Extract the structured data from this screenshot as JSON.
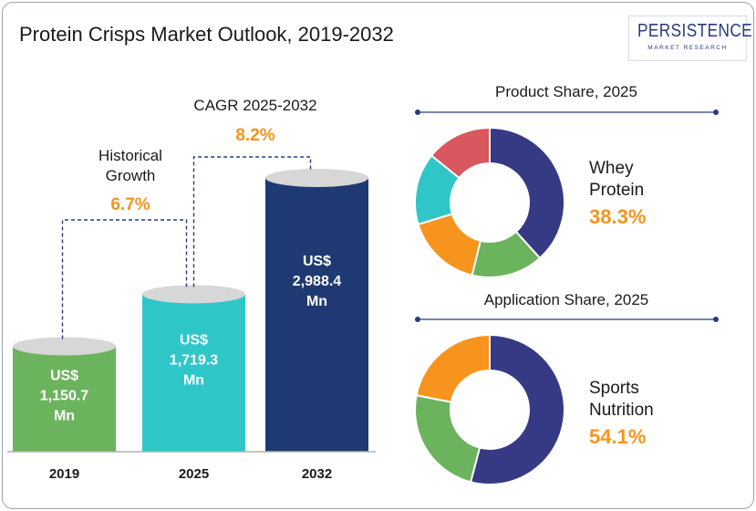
{
  "title": "Protein Crisps Market Outlook, 2019-2032",
  "logo": {
    "main": "PERSISTENCE",
    "sub": "MARKET RESEARCH"
  },
  "colors": {
    "bar_2019": "#6cb35d",
    "bar_2025": "#2fc6c8",
    "bar_2032": "#1f3a73",
    "accent": "#f7941d",
    "navy": "#363a85",
    "green": "#6cb35d",
    "orange": "#f7941d",
    "teal": "#2fc6c8",
    "red": "#d9575f"
  },
  "chart_data": [
    {
      "type": "bar",
      "categories": [
        "2019",
        "2025",
        "2032"
      ],
      "values": [
        1150.7,
        1719.3,
        2988.4
      ],
      "value_labels": [
        [
          "US$",
          "1,150.7",
          "Mn"
        ],
        [
          "US$",
          "1,719.3",
          "Mn"
        ],
        [
          "US$",
          "2,988.4",
          "Mn"
        ]
      ],
      "annotations": {
        "historical": {
          "label_lines": [
            "Historical",
            "Growth"
          ],
          "value": "6.7%"
        },
        "cagr": {
          "label": "CAGR 2025-2032",
          "value": "8.2%"
        }
      }
    },
    {
      "type": "pie",
      "title": "Product Share, 2025",
      "slices": [
        {
          "value": 38.3,
          "color": "#363a85"
        },
        {
          "value": 15.5,
          "color": "#6cb35d"
        },
        {
          "value": 16.5,
          "color": "#f7941d"
        },
        {
          "value": 15.5,
          "color": "#2fc6c8"
        },
        {
          "value": 14.2,
          "color": "#d9575f"
        }
      ],
      "callout": {
        "label_lines": [
          "Whey",
          "Protein"
        ],
        "value": "38.3%"
      }
    },
    {
      "type": "pie",
      "title": "Application Share, 2025",
      "slices": [
        {
          "value": 54.1,
          "color": "#363a85"
        },
        {
          "value": 24.0,
          "color": "#6cb35d"
        },
        {
          "value": 21.9,
          "color": "#f7941d"
        }
      ],
      "callout": {
        "label_lines": [
          "Sports",
          "Nutrition"
        ],
        "value": "54.1%"
      }
    }
  ]
}
